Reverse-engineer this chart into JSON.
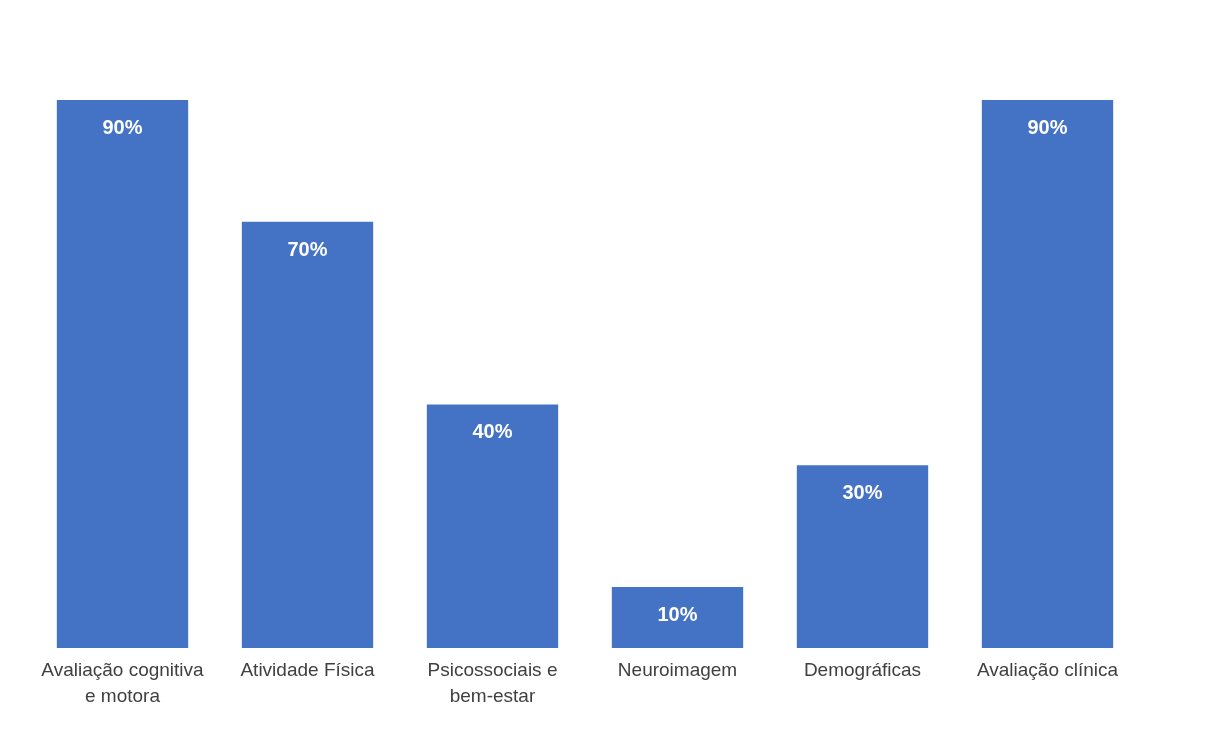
{
  "chart_data": {
    "type": "bar",
    "categories": [
      "Avaliação cognitiva e motora",
      "Atividade Física",
      "Psicossociais e bem-estar",
      "Neuroimagem",
      "Demográficas",
      "Avaliação clínica"
    ],
    "values": [
      90,
      70,
      40,
      10,
      30,
      90
    ],
    "value_labels": [
      "90%",
      "70%",
      "40%",
      "10%",
      "30%",
      "90%"
    ],
    "color": "#4472c4",
    "grid": false
  }
}
